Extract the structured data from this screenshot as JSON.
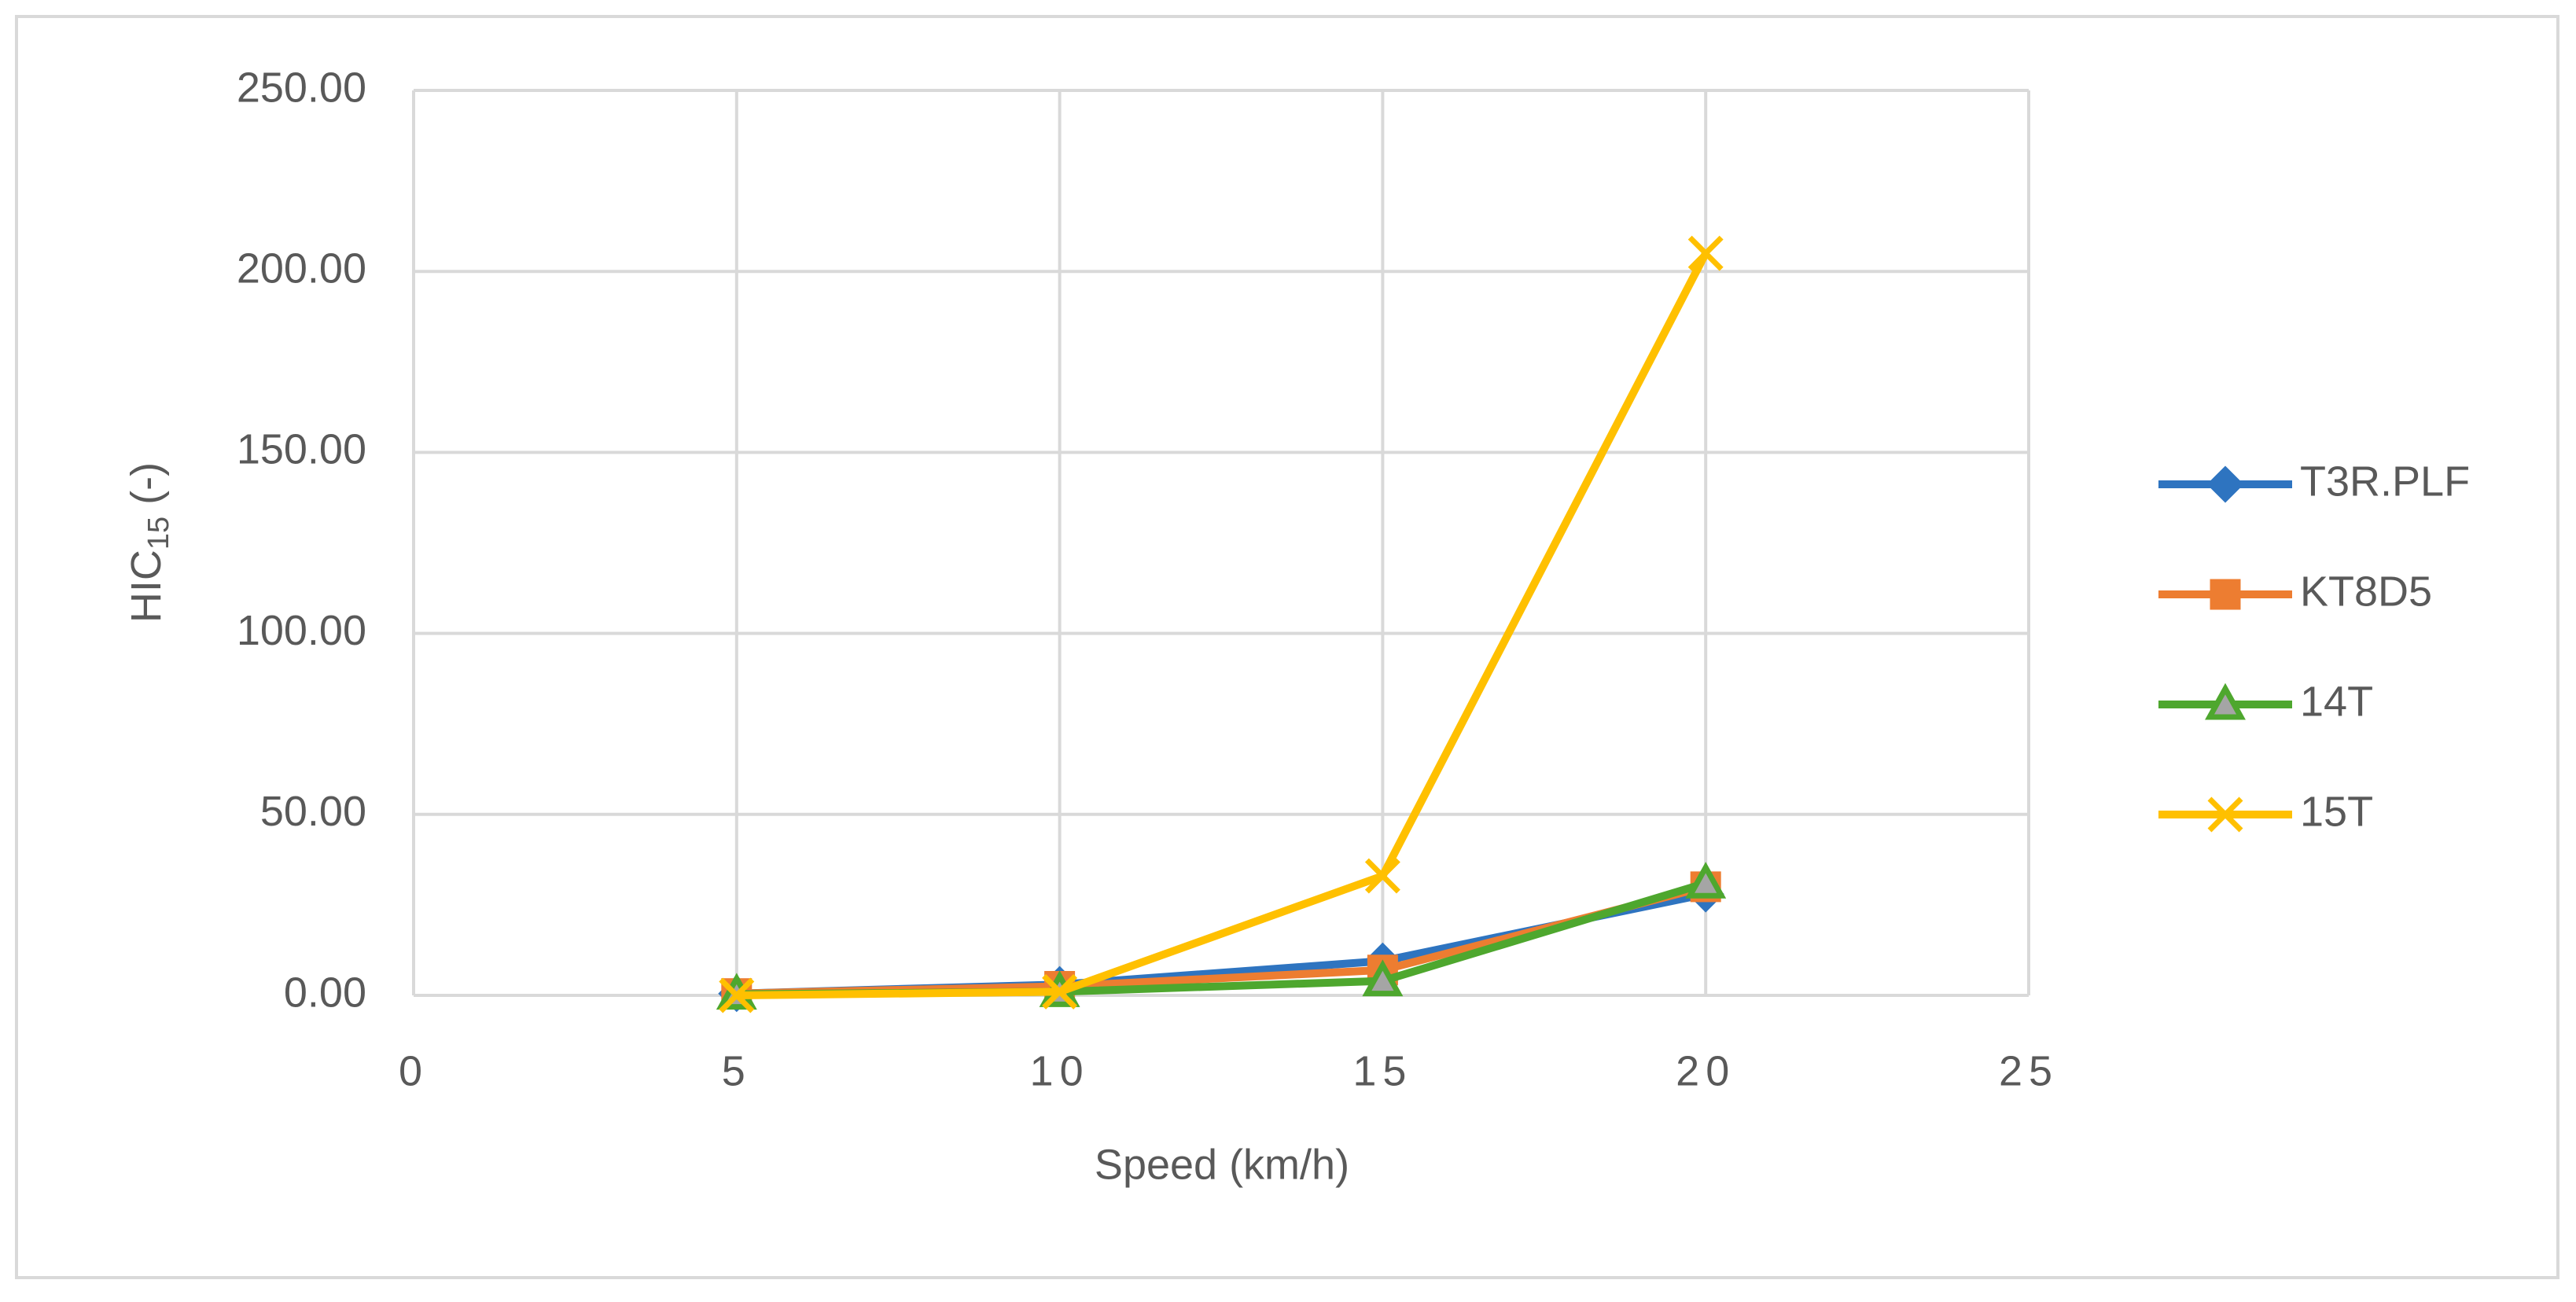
{
  "chart_data": {
    "type": "line",
    "xlabel": "Speed (km/h)",
    "ylabel": "HIC",
    "ylabel_sub": "15",
    "ylabel_suffix": " (-)",
    "x": [
      5,
      10,
      15,
      20
    ],
    "series": [
      {
        "name": "T3R.PLF",
        "color": "#2e74c0",
        "marker": "diamond",
        "values": [
          0.5,
          3,
          9.5,
          28
        ]
      },
      {
        "name": "KT8D5",
        "color": "#ed7d31",
        "marker": "square",
        "values": [
          0.5,
          2.5,
          7,
          30
        ]
      },
      {
        "name": "14T",
        "color": "#4ea72e",
        "marker": "triangle",
        "values": [
          0.3,
          1,
          4,
          31
        ]
      },
      {
        "name": "15T",
        "color": "#ffc000",
        "marker": "x",
        "values": [
          0,
          1,
          33,
          205
        ]
      }
    ],
    "xlim": [
      0,
      25
    ],
    "xticks": [
      0,
      5,
      10,
      15,
      20,
      25
    ],
    "ylim": [
      0,
      250
    ],
    "yticks": [
      {
        "value": 0,
        "label": "0.00"
      },
      {
        "value": 50,
        "label": "50.00"
      },
      {
        "value": 100,
        "label": "100.00"
      },
      {
        "value": 150,
        "label": "150.00"
      },
      {
        "value": 200,
        "label": "200.00"
      },
      {
        "value": 250,
        "label": "250.00"
      }
    ],
    "grid": true,
    "legend": "right"
  }
}
